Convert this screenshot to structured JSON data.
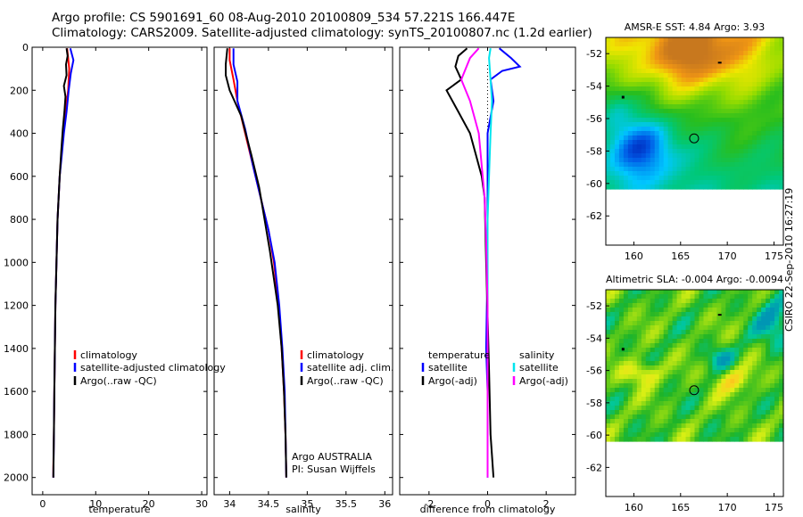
{
  "header": {
    "line1": "Argo profile: CS 5901691_60 08-Aug-2010 20100809_534 57.221S 166.447E",
    "line2": "Climatology: CARS2009. Satellite-adjusted climatology: synTS_20100807.nc (1.2d earlier)"
  },
  "stamp": "CSIRO 22-Sep-2010 16:27:19",
  "colors": {
    "climatology": "#ff0000",
    "satellite": "#0000ff",
    "argo": "#000000",
    "argo_adj": "#ff00ff",
    "sat_salinity": "#00e5ee"
  },
  "chart_data": [
    {
      "id": "temperature",
      "type": "line",
      "xlabel": "temperature",
      "xlim": [
        -2,
        31
      ],
      "ylim": [
        2080,
        0
      ],
      "xticks": [
        0,
        10,
        20,
        30
      ],
      "yticks": [
        0,
        200,
        400,
        600,
        800,
        1000,
        1200,
        1400,
        1600,
        1800,
        2000
      ],
      "legend": [
        "climatology",
        "satellite-adjusted climatology",
        "Argo(..raw -QC)"
      ],
      "series": [
        {
          "name": "climatology",
          "color": "#ff0000",
          "points": [
            [
              4.6,
              5
            ],
            [
              4.8,
              50
            ],
            [
              5.0,
              100
            ],
            [
              4.8,
              200
            ],
            [
              4.3,
              300
            ],
            [
              3.9,
              400
            ],
            [
              3.5,
              500
            ],
            [
              3.2,
              600
            ],
            [
              3.0,
              700
            ],
            [
              2.8,
              800
            ],
            [
              2.6,
              1000
            ],
            [
              2.4,
              1200
            ],
            [
              2.3,
              1400
            ],
            [
              2.2,
              1600
            ],
            [
              2.1,
              1800
            ],
            [
              2.0,
              1950
            ],
            [
              2.0,
              2000
            ]
          ]
        },
        {
          "name": "satellite-adjusted climatology",
          "color": "#0000ff",
          "points": [
            [
              5.2,
              5
            ],
            [
              5.8,
              60
            ],
            [
              5.3,
              120
            ],
            [
              4.9,
              200
            ],
            [
              4.5,
              300
            ],
            [
              4.0,
              400
            ],
            [
              3.6,
              500
            ],
            [
              3.2,
              600
            ],
            [
              3.0,
              700
            ],
            [
              2.8,
              800
            ],
            [
              2.6,
              1000
            ],
            [
              2.4,
              1200
            ],
            [
              2.3,
              1400
            ],
            [
              2.2,
              1600
            ],
            [
              2.1,
              1800
            ],
            [
              2.0,
              2000
            ]
          ]
        },
        {
          "name": "Argo(..raw -QC)",
          "color": "#000000",
          "points": [
            [
              4.5,
              5
            ],
            [
              4.7,
              40
            ],
            [
              4.4,
              80
            ],
            [
              4.5,
              130
            ],
            [
              4.0,
              180
            ],
            [
              4.3,
              230
            ],
            [
              4.1,
              300
            ],
            [
              3.8,
              380
            ],
            [
              3.5,
              480
            ],
            [
              3.2,
              600
            ],
            [
              3.0,
              700
            ],
            [
              2.8,
              800
            ],
            [
              2.6,
              1000
            ],
            [
              2.4,
              1200
            ],
            [
              2.3,
              1400
            ],
            [
              2.2,
              1600
            ],
            [
              2.1,
              1800
            ],
            [
              2.0,
              2000
            ]
          ]
        }
      ]
    },
    {
      "id": "salinity",
      "type": "line",
      "xlabel": "salinity",
      "xlim": [
        33.8,
        36.1
      ],
      "ylim": [
        2080,
        0
      ],
      "xticks": [
        34,
        34.5,
        35,
        35.5,
        36
      ],
      "legend": [
        "climatology",
        "satellite adj. clim.",
        "Argo(..raw -QC)"
      ],
      "annotations": [
        "Argo AUSTRALIA",
        "PI: Susan Wijffels"
      ],
      "series": [
        {
          "name": "climatology",
          "color": "#ff0000",
          "points": [
            [
              34.0,
              5
            ],
            [
              34.0,
              60
            ],
            [
              34.05,
              150
            ],
            [
              34.1,
              250
            ],
            [
              34.2,
              400
            ],
            [
              34.3,
              550
            ],
            [
              34.4,
              700
            ],
            [
              34.5,
              850
            ],
            [
              34.57,
              1000
            ],
            [
              34.63,
              1200
            ],
            [
              34.67,
              1400
            ],
            [
              34.7,
              1600
            ],
            [
              34.72,
              1800
            ],
            [
              34.73,
              2000
            ]
          ]
        },
        {
          "name": "satellite adj. clim.",
          "color": "#0000ff",
          "points": [
            [
              34.05,
              5
            ],
            [
              34.05,
              80
            ],
            [
              34.1,
              160
            ],
            [
              34.1,
              250
            ],
            [
              34.2,
              380
            ],
            [
              34.3,
              550
            ],
            [
              34.4,
              700
            ],
            [
              34.5,
              850
            ],
            [
              34.58,
              1000
            ],
            [
              34.64,
              1200
            ],
            [
              34.68,
              1400
            ],
            [
              34.71,
              1600
            ],
            [
              34.72,
              1800
            ],
            [
              34.73,
              2000
            ]
          ]
        },
        {
          "name": "Argo(..raw -QC)",
          "color": "#000000",
          "points": [
            [
              33.97,
              5
            ],
            [
              33.95,
              80
            ],
            [
              33.95,
              130
            ],
            [
              34.0,
              200
            ],
            [
              34.15,
              320
            ],
            [
              34.28,
              500
            ],
            [
              34.38,
              650
            ],
            [
              34.45,
              800
            ],
            [
              34.52,
              950
            ],
            [
              34.62,
              1200
            ],
            [
              34.67,
              1400
            ],
            [
              34.7,
              1600
            ],
            [
              34.72,
              1800
            ],
            [
              34.73,
              2000
            ]
          ]
        }
      ]
    },
    {
      "id": "difference",
      "type": "line",
      "xlabel": "difference from climatology",
      "xlim": [
        -3,
        3
      ],
      "ylim": [
        2080,
        0
      ],
      "xticks": [
        -2,
        0,
        2
      ],
      "legend": [
        "temperature",
        "satellite",
        "Argo(-adj)",
        "salinity",
        "satellite",
        "Argo(-adj)"
      ],
      "series": [
        {
          "name": "temperature satellite",
          "color": "#0000ff",
          "points": [
            [
              0.4,
              5
            ],
            [
              0.8,
              50
            ],
            [
              1.1,
              90
            ],
            [
              0.5,
              110
            ],
            [
              0.1,
              150
            ],
            [
              0.2,
              250
            ],
            [
              0.0,
              400
            ],
            [
              0.0,
              600
            ],
            [
              0.0,
              800
            ],
            [
              0.0,
              1000
            ],
            [
              -0.05,
              1400
            ],
            [
              0.0,
              1600
            ],
            [
              0.0,
              2000
            ]
          ]
        },
        {
          "name": "temperature Argo(-adj)",
          "color": "#000000",
          "points": [
            [
              -0.7,
              5
            ],
            [
              -1.0,
              40
            ],
            [
              -1.1,
              90
            ],
            [
              -0.9,
              150
            ],
            [
              -1.4,
              200
            ],
            [
              -1.0,
              300
            ],
            [
              -0.6,
              400
            ],
            [
              -0.4,
              500
            ],
            [
              -0.2,
              600
            ],
            [
              -0.1,
              700
            ],
            [
              -0.05,
              1000
            ],
            [
              0.05,
              1500
            ],
            [
              0.1,
              1800
            ],
            [
              0.2,
              2000
            ]
          ]
        },
        {
          "name": "salinity satellite",
          "color": "#00e5ee",
          "points": [
            [
              0.1,
              5
            ],
            [
              0.05,
              50
            ],
            [
              0.1,
              150
            ],
            [
              0.15,
              250
            ],
            [
              0.1,
              400
            ],
            [
              0.05,
              600
            ],
            [
              0.0,
              800
            ],
            [
              0.0,
              1200
            ],
            [
              0.0,
              1600
            ],
            [
              0.0,
              2000
            ]
          ]
        },
        {
          "name": "salinity Argo(-adj)",
          "color": "#ff00ff",
          "points": [
            [
              -0.3,
              5
            ],
            [
              -0.6,
              50
            ],
            [
              -0.9,
              150
            ],
            [
              -0.6,
              250
            ],
            [
              -0.3,
              400
            ],
            [
              -0.2,
              550
            ],
            [
              -0.1,
              700
            ],
            [
              -0.05,
              900
            ],
            [
              0.0,
              1200
            ],
            [
              0.0,
              1600
            ],
            [
              0.0,
              2000
            ]
          ]
        }
      ]
    },
    {
      "id": "sst_map",
      "type": "heatmap",
      "title": "AMSR-E SST: 4.84 Argo: 3.93",
      "xlim": [
        157,
        176
      ],
      "ylim": [
        -63.8,
        -51
      ],
      "xticks": [
        160,
        165,
        170,
        175
      ],
      "yticks": [
        -52,
        -54,
        -56,
        -58,
        -60,
        -62
      ],
      "float_lon": 166.447,
      "float_lat": -57.221
    },
    {
      "id": "sla_map",
      "type": "heatmap",
      "title": "Altimetric SLA: -0.004 Argo: -0.0094",
      "xlim": [
        157,
        176
      ],
      "ylim": [
        -63.8,
        -51
      ],
      "xticks": [
        160,
        165,
        170,
        175
      ],
      "yticks": [
        -52,
        -54,
        -56,
        -58,
        -60,
        -62
      ],
      "float_lon": 166.447,
      "float_lat": -57.221
    }
  ]
}
